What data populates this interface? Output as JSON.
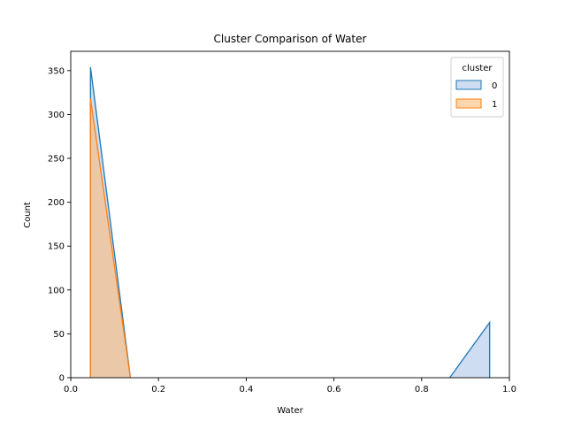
{
  "chart_data": {
    "type": "area",
    "title": "Cluster Comparison of Water",
    "xlabel": "Water",
    "ylabel": "Count",
    "xlim": [
      0.0,
      1.0
    ],
    "ylim": [
      0,
      372
    ],
    "xticks": [
      "0.0",
      "0.2",
      "0.4",
      "0.6",
      "0.8",
      "1.0"
    ],
    "xtick_values": [
      0.0,
      0.2,
      0.4,
      0.6,
      0.8,
      1.0
    ],
    "yticks": [
      "0",
      "50",
      "100",
      "150",
      "200",
      "250",
      "300",
      "350"
    ],
    "ytick_values": [
      0,
      50,
      100,
      150,
      200,
      250,
      300,
      350
    ],
    "grid": false,
    "legend": {
      "title": "cluster",
      "placement": "top-right",
      "entries": [
        "0",
        "1"
      ]
    },
    "series": [
      {
        "name": "0",
        "color": "#1f77b4",
        "fill": "#aec7e8",
        "segments": [
          [
            {
              "x": 0.045,
              "y": 0
            },
            {
              "x": 0.045,
              "y": 354
            },
            {
              "x": 0.136,
              "y": 0
            }
          ],
          [
            {
              "x": 0.864,
              "y": 0
            },
            {
              "x": 0.955,
              "y": 63
            },
            {
              "x": 0.955,
              "y": 0
            }
          ]
        ]
      },
      {
        "name": "1",
        "color": "#ff7f0e",
        "fill": "#ffbb78",
        "segments": [
          [
            {
              "x": 0.045,
              "y": 0
            },
            {
              "x": 0.045,
              "y": 318
            },
            {
              "x": 0.136,
              "y": 0
            }
          ]
        ]
      }
    ]
  }
}
